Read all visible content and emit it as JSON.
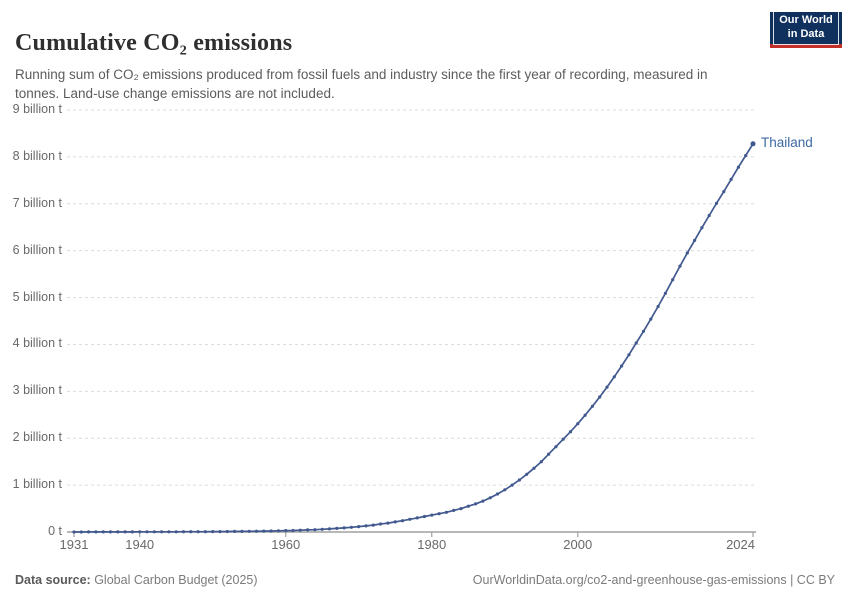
{
  "header": {
    "title": "Cumulative CO₂ emissions",
    "subtitle": "Running sum of CO₂ emissions produced from fossil fuels and industry since the first year of recording, measured in tonnes. Land-use change emissions are not included.",
    "logo": {
      "line1": "Our World",
      "line2": "in Data",
      "bg_color": "#10305e",
      "accent_color": "#c2302a"
    }
  },
  "chart_data": {
    "type": "line",
    "title": "Cumulative CO₂ emissions",
    "unit": "tonnes",
    "entity": "Thailand",
    "entity_line_color": "#41598f",
    "entity_label_color": "#3d6aa2",
    "grid": "horizontal-dashed",
    "legend_position": "end-of-line",
    "xlim": [
      1931,
      2024
    ],
    "ylim": [
      0,
      9
    ],
    "x_ticks": [
      1931,
      1940,
      1960,
      1980,
      2000,
      2024
    ],
    "y_ticks": [
      {
        "value": 0,
        "label": "0 t"
      },
      {
        "value": 1,
        "label": "1 billion t"
      },
      {
        "value": 2,
        "label": "2 billion t"
      },
      {
        "value": 3,
        "label": "3 billion t"
      },
      {
        "value": 4,
        "label": "4 billion t"
      },
      {
        "value": 5,
        "label": "5 billion t"
      },
      {
        "value": 6,
        "label": "6 billion t"
      },
      {
        "value": 7,
        "label": "7 billion t"
      },
      {
        "value": 8,
        "label": "8 billion t"
      },
      {
        "value": 9,
        "label": "9 billion t"
      }
    ],
    "x": [
      1931,
      1932,
      1933,
      1934,
      1935,
      1936,
      1937,
      1938,
      1939,
      1940,
      1941,
      1942,
      1943,
      1944,
      1945,
      1946,
      1947,
      1948,
      1949,
      1950,
      1951,
      1952,
      1953,
      1954,
      1955,
      1956,
      1957,
      1958,
      1959,
      1960,
      1961,
      1962,
      1963,
      1964,
      1965,
      1966,
      1967,
      1968,
      1969,
      1970,
      1971,
      1972,
      1973,
      1974,
      1975,
      1976,
      1977,
      1978,
      1979,
      1980,
      1981,
      1982,
      1983,
      1984,
      1985,
      1986,
      1987,
      1988,
      1989,
      1990,
      1991,
      1992,
      1993,
      1994,
      1995,
      1996,
      1997,
      1998,
      1999,
      2000,
      2001,
      2002,
      2003,
      2004,
      2005,
      2006,
      2007,
      2008,
      2009,
      2010,
      2011,
      2012,
      2013,
      2014,
      2015,
      2016,
      2017,
      2018,
      2019,
      2020,
      2021,
      2022,
      2023,
      2024
    ],
    "series": [
      {
        "name": "Thailand",
        "unit": "billion tonnes",
        "values": [
          0.001,
          0.001,
          0.002,
          0.002,
          0.002,
          0.002,
          0.003,
          0.003,
          0.003,
          0.004,
          0.004,
          0.004,
          0.005,
          0.005,
          0.005,
          0.006,
          0.006,
          0.007,
          0.007,
          0.008,
          0.009,
          0.01,
          0.012,
          0.013,
          0.015,
          0.017,
          0.019,
          0.022,
          0.025,
          0.029,
          0.033,
          0.038,
          0.044,
          0.05,
          0.058,
          0.067,
          0.077,
          0.088,
          0.1,
          0.115,
          0.13,
          0.148,
          0.17,
          0.19,
          0.215,
          0.24,
          0.27,
          0.3,
          0.33,
          0.36,
          0.39,
          0.42,
          0.46,
          0.5,
          0.55,
          0.6,
          0.66,
          0.73,
          0.81,
          0.9,
          1.0,
          1.11,
          1.23,
          1.36,
          1.5,
          1.66,
          1.82,
          1.98,
          2.14,
          2.31,
          2.49,
          2.68,
          2.88,
          3.09,
          3.31,
          3.54,
          3.78,
          4.03,
          4.28,
          4.54,
          4.81,
          5.09,
          5.38,
          5.67,
          5.95,
          6.22,
          6.49,
          6.75,
          7.01,
          7.26,
          7.52,
          7.78,
          8.03,
          8.28
        ]
      }
    ]
  },
  "footer": {
    "source_label": "Data source:",
    "source_value": " Global Carbon Budget (2025)",
    "note_right": "OurWorldinData.org/co2-and-greenhouse-gas-emissions | CC BY"
  }
}
